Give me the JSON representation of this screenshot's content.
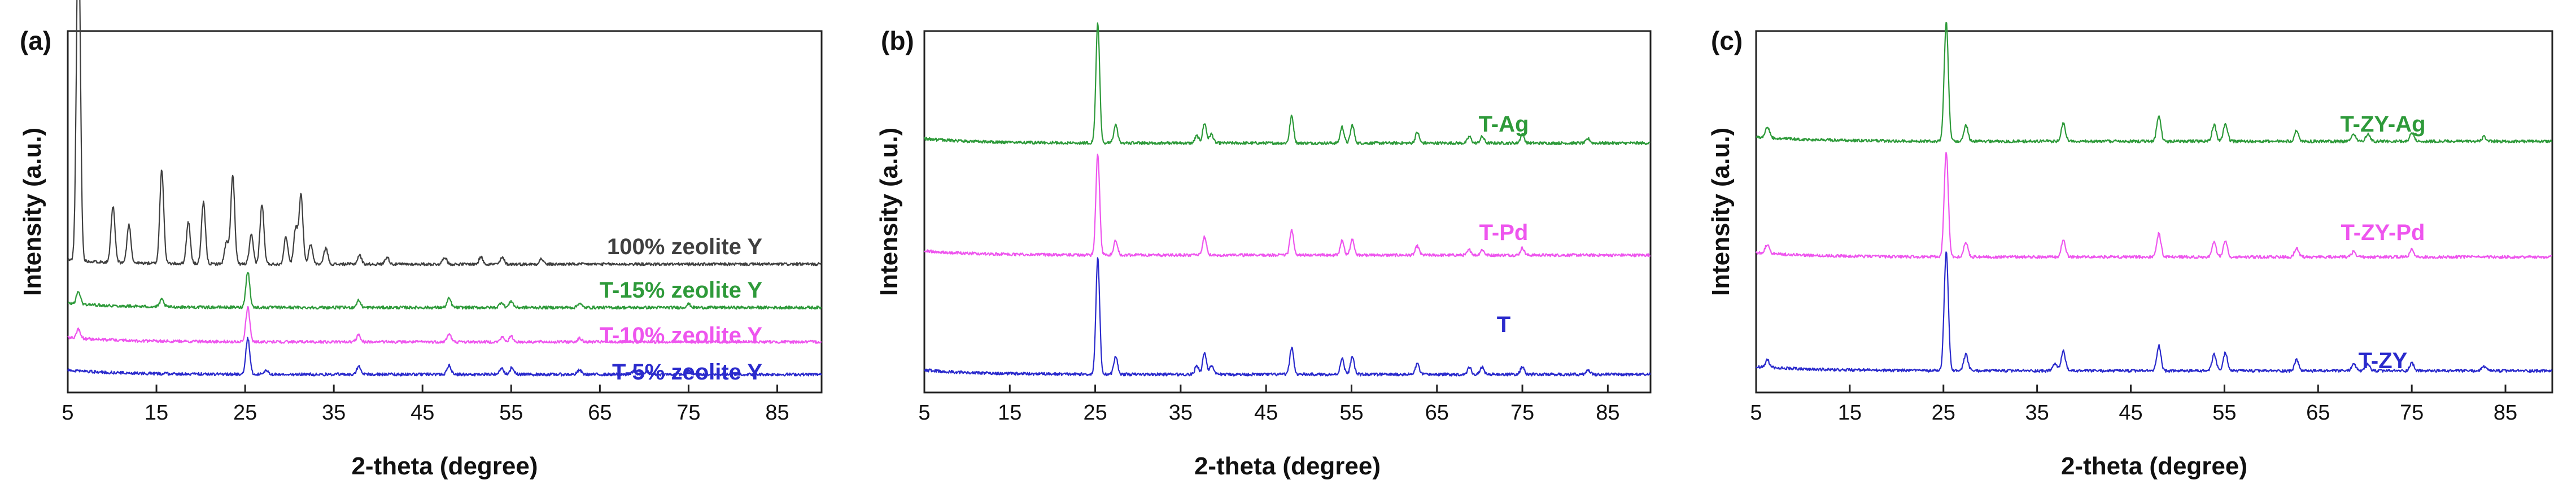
{
  "chart_data": [
    {
      "type": "line",
      "panel_label": "(a)",
      "xlabel": "2-theta (degree)",
      "ylabel": "Intensity (a.u.)",
      "xlim": [
        5,
        90
      ],
      "x_ticks": [
        5,
        15,
        25,
        35,
        45,
        55,
        65,
        75,
        85
      ],
      "grid": false,
      "series": [
        {
          "name": "100% zeolite Y",
          "color": "#404040",
          "baseline": 0.355,
          "peaks": [
            [
              6.2,
              0.95
            ],
            [
              10.1,
              0.155
            ],
            [
              11.9,
              0.105
            ],
            [
              15.6,
              0.26
            ],
            [
              18.6,
              0.115
            ],
            [
              20.3,
              0.17
            ],
            [
              22.9,
              0.06
            ],
            [
              23.6,
              0.245
            ],
            [
              25.7,
              0.08
            ],
            [
              26.9,
              0.165
            ],
            [
              29.6,
              0.075
            ],
            [
              30.7,
              0.1
            ],
            [
              31.3,
              0.19
            ],
            [
              32.4,
              0.055
            ],
            [
              34.1,
              0.045
            ],
            [
              37.9,
              0.025
            ],
            [
              41.0,
              0.02
            ],
            [
              47.5,
              0.02
            ],
            [
              51.6,
              0.02
            ],
            [
              54.0,
              0.018
            ],
            [
              58.4,
              0.015
            ]
          ]
        },
        {
          "name": "T-15% zeolite Y",
          "color": "#2e9a3a",
          "baseline": 0.235,
          "peaks": [
            [
              6.2,
              0.035
            ],
            [
              15.6,
              0.02
            ],
            [
              25.3,
              0.1
            ],
            [
              37.8,
              0.02
            ],
            [
              48.0,
              0.025
            ],
            [
              53.9,
              0.015
            ],
            [
              55.0,
              0.018
            ],
            [
              62.7,
              0.012
            ],
            [
              75.0,
              0.01
            ]
          ]
        },
        {
          "name": "T-10% zeolite Y",
          "color": "#ee55ee",
          "baseline": 0.14,
          "peaks": [
            [
              6.2,
              0.025
            ],
            [
              25.3,
              0.095
            ],
            [
              37.8,
              0.02
            ],
            [
              48.0,
              0.022
            ],
            [
              54.0,
              0.013
            ],
            [
              55.0,
              0.015
            ],
            [
              62.7,
              0.01
            ]
          ]
        },
        {
          "name": "T-5% zeolite Y",
          "color": "#2a2acc",
          "baseline": 0.05,
          "peaks": [
            [
              25.3,
              0.1
            ],
            [
              27.4,
              0.012
            ],
            [
              37.8,
              0.022
            ],
            [
              48.0,
              0.025
            ],
            [
              53.9,
              0.018
            ],
            [
              55.1,
              0.02
            ],
            [
              62.7,
              0.012
            ],
            [
              68.8,
              0.008
            ],
            [
              70.3,
              0.008
            ],
            [
              75.0,
              0.01
            ]
          ]
        }
      ]
    },
    {
      "type": "line",
      "panel_label": "(b)",
      "xlabel": "2-theta (degree)",
      "ylabel": "Intensity (a.u.)",
      "xlim": [
        5,
        90
      ],
      "x_ticks": [
        5,
        15,
        25,
        35,
        45,
        55,
        65,
        75,
        85
      ],
      "grid": false,
      "series": [
        {
          "name": "T-Ag",
          "color": "#2e9a3a",
          "baseline": 0.69,
          "peaks": [
            [
              25.3,
              0.33
            ],
            [
              27.4,
              0.05
            ],
            [
              36.9,
              0.02
            ],
            [
              37.8,
              0.055
            ],
            [
              38.6,
              0.025
            ],
            [
              48.0,
              0.075
            ],
            [
              53.9,
              0.045
            ],
            [
              55.1,
              0.05
            ],
            [
              62.7,
              0.03
            ],
            [
              68.8,
              0.018
            ],
            [
              70.3,
              0.018
            ],
            [
              75.0,
              0.025
            ],
            [
              82.7,
              0.012
            ]
          ]
        },
        {
          "name": "T-Pd",
          "color": "#ee55ee",
          "baseline": 0.38,
          "peaks": [
            [
              25.3,
              0.28
            ],
            [
              27.4,
              0.04
            ],
            [
              37.8,
              0.05
            ],
            [
              48.0,
              0.07
            ],
            [
              53.9,
              0.04
            ],
            [
              55.1,
              0.045
            ],
            [
              62.7,
              0.025
            ],
            [
              68.8,
              0.015
            ],
            [
              70.3,
              0.015
            ],
            [
              75.0,
              0.02
            ]
          ]
        },
        {
          "name": "T",
          "color": "#2a2acc",
          "baseline": 0.05,
          "peaks": [
            [
              25.3,
              0.32
            ],
            [
              27.4,
              0.05
            ],
            [
              36.9,
              0.025
            ],
            [
              37.8,
              0.06
            ],
            [
              38.6,
              0.025
            ],
            [
              48.0,
              0.075
            ],
            [
              53.9,
              0.045
            ],
            [
              55.1,
              0.05
            ],
            [
              62.7,
              0.03
            ],
            [
              68.8,
              0.02
            ],
            [
              70.3,
              0.02
            ],
            [
              75.0,
              0.022
            ],
            [
              82.7,
              0.012
            ]
          ]
        }
      ]
    },
    {
      "type": "line",
      "panel_label": "(c)",
      "xlabel": "2-theta (degree)",
      "ylabel": "Intensity (a.u.)",
      "xlim": [
        5,
        90
      ],
      "x_ticks": [
        5,
        15,
        25,
        35,
        45,
        55,
        65,
        75,
        85
      ],
      "grid": false,
      "series": [
        {
          "name": "T-ZY-Ag",
          "color": "#2e9a3a",
          "baseline": 0.695,
          "peaks": [
            [
              6.2,
              0.03
            ],
            [
              25.3,
              0.33
            ],
            [
              27.4,
              0.045
            ],
            [
              37.8,
              0.05
            ],
            [
              48.0,
              0.07
            ],
            [
              53.9,
              0.045
            ],
            [
              55.1,
              0.05
            ],
            [
              62.7,
              0.03
            ],
            [
              68.8,
              0.02
            ],
            [
              70.3,
              0.02
            ],
            [
              75.0,
              0.025
            ],
            [
              82.7,
              0.012
            ]
          ]
        },
        {
          "name": "T-ZY-Pd",
          "color": "#ee55ee",
          "baseline": 0.375,
          "peaks": [
            [
              6.2,
              0.025
            ],
            [
              25.3,
              0.29
            ],
            [
              27.4,
              0.04
            ],
            [
              37.8,
              0.045
            ],
            [
              48.0,
              0.065
            ],
            [
              53.9,
              0.04
            ],
            [
              55.1,
              0.045
            ],
            [
              62.7,
              0.025
            ],
            [
              68.8,
              0.015
            ],
            [
              75.0,
              0.02
            ]
          ]
        },
        {
          "name": "T-ZY",
          "color": "#2a2acc",
          "baseline": 0.06,
          "peaks": [
            [
              6.2,
              0.02
            ],
            [
              25.3,
              0.33
            ],
            [
              27.4,
              0.045
            ],
            [
              36.9,
              0.02
            ],
            [
              37.8,
              0.055
            ],
            [
              48.0,
              0.07
            ],
            [
              53.9,
              0.045
            ],
            [
              55.1,
              0.05
            ],
            [
              62.7,
              0.03
            ],
            [
              68.8,
              0.02
            ],
            [
              70.3,
              0.018
            ],
            [
              75.0,
              0.022
            ],
            [
              82.7,
              0.012
            ]
          ]
        }
      ]
    }
  ]
}
